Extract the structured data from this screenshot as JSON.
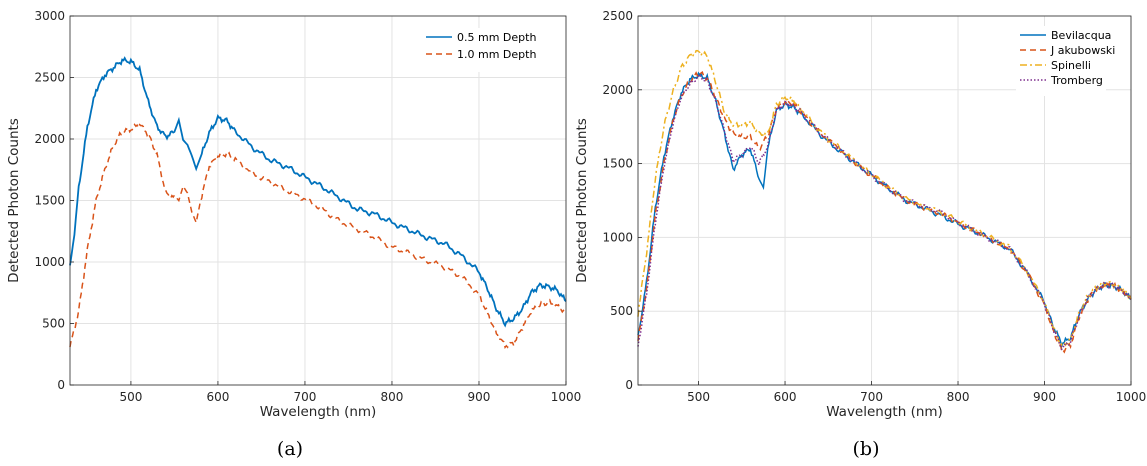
{
  "chart_data": [
    {
      "type": "line",
      "caption": "(a)",
      "xlabel": "Wavelength (nm)",
      "ylabel": "Detected Photon Counts",
      "xlim": [
        430,
        1000
      ],
      "ylim": [
        0,
        3000
      ],
      "xticks": [
        500,
        600,
        700,
        800,
        900,
        1000
      ],
      "yticks": [
        0,
        500,
        1000,
        1500,
        2000,
        2500,
        3000
      ],
      "grid": true,
      "legend_position": "top-right",
      "series": [
        {
          "name": "0.5 mm Depth",
          "color": "#0072BD",
          "dash": "solid",
          "x": [
            430,
            435,
            440,
            450,
            460,
            470,
            480,
            490,
            500,
            510,
            520,
            530,
            540,
            550,
            555,
            560,
            565,
            570,
            575,
            580,
            590,
            600,
            610,
            620,
            640,
            660,
            680,
            700,
            720,
            740,
            760,
            780,
            800,
            820,
            840,
            860,
            880,
            900,
            910,
            920,
            930,
            940,
            950,
            960,
            970,
            980,
            990,
            1000
          ],
          "y": [
            950,
            1200,
            1600,
            2100,
            2400,
            2520,
            2580,
            2640,
            2630,
            2560,
            2300,
            2100,
            2020,
            2060,
            2160,
            2000,
            1960,
            1870,
            1760,
            1850,
            2050,
            2170,
            2150,
            2060,
            1930,
            1830,
            1770,
            1690,
            1610,
            1520,
            1430,
            1390,
            1320,
            1260,
            1200,
            1150,
            1050,
            920,
            780,
            620,
            500,
            540,
            620,
            750,
            810,
            800,
            770,
            680
          ]
        },
        {
          "name": "1.0 mm Depth",
          "color": "#D95319",
          "dash": "dashed",
          "x": [
            430,
            440,
            450,
            460,
            470,
            480,
            490,
            500,
            510,
            520,
            530,
            540,
            550,
            555,
            560,
            565,
            570,
            575,
            580,
            590,
            600,
            610,
            620,
            640,
            660,
            680,
            700,
            720,
            740,
            760,
            780,
            800,
            820,
            840,
            860,
            880,
            900,
            910,
            920,
            930,
            940,
            950,
            960,
            970,
            980,
            990,
            1000
          ],
          "y": [
            310,
            600,
            1100,
            1500,
            1750,
            1950,
            2060,
            2080,
            2120,
            2040,
            1870,
            1560,
            1520,
            1480,
            1600,
            1550,
            1400,
            1320,
            1500,
            1780,
            1860,
            1880,
            1830,
            1720,
            1650,
            1580,
            1510,
            1430,
            1330,
            1270,
            1200,
            1120,
            1070,
            1010,
            960,
            880,
            730,
            580,
            420,
            320,
            340,
            470,
            600,
            650,
            670,
            640,
            590
          ]
        }
      ]
    },
    {
      "type": "line",
      "caption": "(b)",
      "xlabel": "Wavelength (nm)",
      "ylabel": "Detected Photon Counts",
      "xlim": [
        430,
        1000
      ],
      "ylim": [
        0,
        2500
      ],
      "xticks": [
        500,
        600,
        700,
        800,
        900,
        1000
      ],
      "yticks": [
        0,
        500,
        1000,
        1500,
        2000,
        2500
      ],
      "grid": true,
      "legend_position": "top-right",
      "series": [
        {
          "name": "Bevilacqua",
          "color": "#0072BD",
          "dash": "solid",
          "x": [
            430,
            440,
            450,
            460,
            470,
            480,
            490,
            500,
            510,
            520,
            530,
            540,
            550,
            560,
            570,
            575,
            580,
            590,
            600,
            610,
            620,
            640,
            660,
            680,
            700,
            720,
            740,
            760,
            780,
            800,
            820,
            840,
            860,
            880,
            900,
            910,
            920,
            930,
            940,
            950,
            960,
            970,
            980,
            990,
            1000
          ],
          "y": [
            320,
            700,
            1200,
            1550,
            1800,
            1980,
            2070,
            2100,
            2080,
            1920,
            1700,
            1460,
            1560,
            1600,
            1400,
            1340,
            1600,
            1860,
            1900,
            1880,
            1830,
            1700,
            1600,
            1510,
            1420,
            1330,
            1250,
            1200,
            1150,
            1090,
            1040,
            980,
            920,
            760,
            560,
            400,
            280,
            320,
            480,
            580,
            650,
            680,
            670,
            640,
            580
          ]
        },
        {
          "name": "J akubowski",
          "color": "#D95319",
          "dash": "dashed",
          "x": [
            430,
            440,
            450,
            460,
            470,
            480,
            490,
            500,
            510,
            520,
            530,
            540,
            550,
            560,
            570,
            580,
            590,
            600,
            610,
            620,
            640,
            660,
            680,
            700,
            720,
            740,
            760,
            780,
            800,
            820,
            840,
            860,
            880,
            900,
            910,
            920,
            930,
            940,
            950,
            960,
            970,
            980,
            990,
            1000
          ],
          "y": [
            300,
            650,
            1150,
            1500,
            1780,
            1960,
            2060,
            2120,
            2080,
            1950,
            1800,
            1700,
            1680,
            1680,
            1600,
            1690,
            1870,
            1920,
            1900,
            1840,
            1710,
            1610,
            1510,
            1420,
            1330,
            1250,
            1200,
            1160,
            1100,
            1040,
            980,
            920,
            760,
            540,
            370,
            230,
            270,
            460,
            580,
            650,
            680,
            670,
            640,
            580
          ]
        },
        {
          "name": "Spinelli",
          "color": "#EDB120",
          "dash": "dashdot",
          "x": [
            430,
            440,
            450,
            460,
            470,
            480,
            490,
            500,
            510,
            520,
            530,
            540,
            550,
            560,
            570,
            580,
            590,
            600,
            610,
            620,
            640,
            660,
            680,
            700,
            720,
            740,
            760,
            780,
            800,
            820,
            840,
            860,
            880,
            900,
            910,
            920,
            930,
            940,
            950,
            960,
            970,
            980,
            990,
            1000
          ],
          "y": [
            480,
            900,
            1400,
            1750,
            1980,
            2150,
            2230,
            2260,
            2230,
            2050,
            1850,
            1760,
            1760,
            1780,
            1700,
            1700,
            1900,
            1950,
            1930,
            1860,
            1720,
            1620,
            1520,
            1430,
            1340,
            1260,
            1210,
            1170,
            1110,
            1050,
            990,
            930,
            770,
            560,
            390,
            270,
            300,
            490,
            600,
            660,
            690,
            680,
            650,
            590
          ]
        },
        {
          "name": "Tromberg",
          "color": "#7E2F8E",
          "dash": "dotted",
          "x": [
            430,
            440,
            450,
            460,
            470,
            480,
            490,
            500,
            510,
            520,
            530,
            540,
            550,
            560,
            570,
            580,
            590,
            600,
            610,
            620,
            640,
            660,
            680,
            700,
            720,
            740,
            760,
            780,
            800,
            820,
            840,
            860,
            880,
            900,
            910,
            920,
            930,
            940,
            950,
            960,
            970,
            980,
            990,
            1000
          ],
          "y": [
            260,
            620,
            1100,
            1480,
            1760,
            1950,
            2040,
            2090,
            2060,
            1920,
            1720,
            1520,
            1560,
            1620,
            1500,
            1620,
            1860,
            1910,
            1890,
            1840,
            1710,
            1610,
            1510,
            1420,
            1330,
            1250,
            1210,
            1170,
            1100,
            1040,
            980,
            920,
            760,
            550,
            380,
            250,
            290,
            470,
            590,
            650,
            680,
            670,
            640,
            580
          ]
        }
      ]
    }
  ]
}
